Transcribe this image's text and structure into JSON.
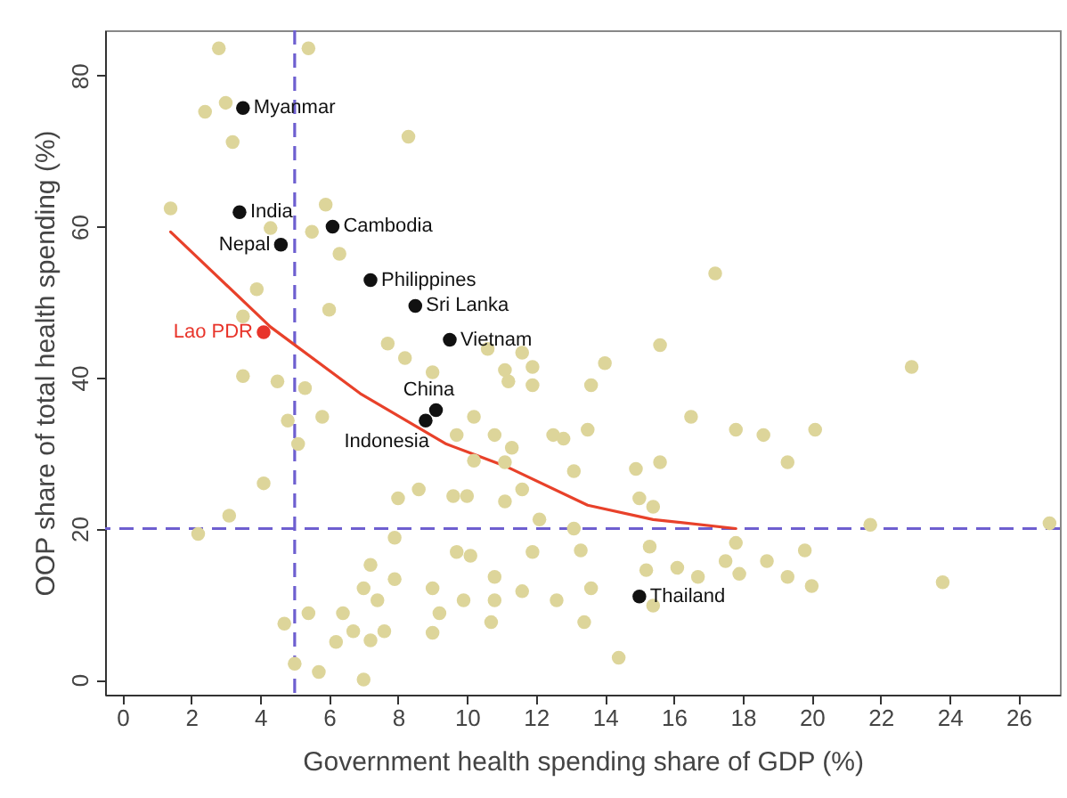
{
  "chart_data": {
    "type": "scatter",
    "xlabel": "Government health spending share of GDP (%)",
    "ylabel": "OOP share of total health spending (%)",
    "xlim": [
      -0.5,
      27.2
    ],
    "ylim": [
      -2,
      86
    ],
    "xticks": [
      0,
      2,
      4,
      6,
      8,
      10,
      12,
      14,
      16,
      18,
      20,
      22,
      24,
      26
    ],
    "yticks": [
      0,
      20,
      40,
      60,
      80
    ],
    "marker": "circle",
    "series": [
      {
        "color": "#ddd59a",
        "x": [
          2.8,
          5.4,
          2.4,
          3.0,
          3.2,
          8.3,
          1.4,
          5.9,
          4.3,
          6.3,
          5.5,
          3.9,
          6.0,
          3.5,
          7.7,
          8.2,
          3.5,
          4.5,
          9.0,
          17.2,
          15.6,
          14.0,
          22.9,
          11.1,
          11.9,
          10.6,
          11.6,
          5.3,
          4.8,
          5.8,
          5.1,
          4.1,
          8.0,
          8.6,
          3.1,
          2.2,
          7.9,
          7.2,
          7.9,
          7.0,
          7.4,
          9.0,
          9.2,
          5.4,
          6.4,
          4.7,
          6.7,
          7.6,
          7.2,
          6.2,
          9.0,
          5.0,
          5.7,
          7.0,
          11.2,
          11.9,
          13.6,
          10.2,
          9.7,
          10.8,
          11.3,
          12.5,
          12.8,
          13.5,
          16.5,
          17.8,
          18.6,
          20.1,
          10.2,
          11.1,
          13.1,
          14.9,
          15.6,
          19.3,
          9.6,
          10.0,
          11.1,
          11.6,
          12.1,
          13.1,
          15.0,
          15.4,
          17.8,
          21.7,
          26.9,
          9.7,
          10.1,
          11.9,
          13.3,
          15.3,
          17.5,
          18.7,
          19.8,
          10.8,
          15.2,
          16.1,
          16.7,
          17.9,
          19.3,
          20.0,
          11.6,
          13.6,
          23.8,
          9.9,
          10.8,
          12.6,
          15.4,
          10.7,
          13.4,
          14.4
        ],
        "values": [
          83.6,
          83.6,
          75.2,
          76.4,
          71.2,
          71.9,
          62.4,
          62.9,
          59.8,
          56.4,
          59.3,
          51.7,
          49.0,
          48.1,
          44.5,
          42.6,
          40.2,
          39.5,
          40.7,
          53.8,
          44.3,
          41.9,
          41.4,
          41.0,
          41.4,
          43.8,
          43.3,
          38.6,
          34.3,
          34.8,
          31.2,
          26.0,
          24.0,
          25.2,
          21.7,
          19.3,
          18.8,
          15.2,
          13.3,
          12.1,
          10.5,
          12.1,
          8.8,
          8.8,
          8.8,
          7.4,
          6.4,
          6.4,
          5.2,
          5.0,
          6.2,
          2.1,
          1.0,
          0,
          39.5,
          39.0,
          39.0,
          34.8,
          32.4,
          32.4,
          30.7,
          32.4,
          31.9,
          33.1,
          34.8,
          33.1,
          32.4,
          33.1,
          29.0,
          28.8,
          27.6,
          27.9,
          28.8,
          28.8,
          24.3,
          24.3,
          23.6,
          25.2,
          21.2,
          20.0,
          24.0,
          22.9,
          18.1,
          20.5,
          20.7,
          16.9,
          16.4,
          16.9,
          17.1,
          17.6,
          15.7,
          15.7,
          17.1,
          13.6,
          14.5,
          14.8,
          13.6,
          14.0,
          13.6,
          12.4,
          11.7,
          12.1,
          12.9,
          10.5,
          10.5,
          10.5,
          9.8,
          7.6,
          7.6,
          2.9
        ]
      },
      {
        "color": "#111111",
        "x": [
          3.5,
          3.4,
          4.6,
          6.1,
          7.2,
          8.5,
          9.5,
          9.1,
          8.8,
          15.0
        ],
        "values": [
          75.7,
          61.9,
          57.6,
          60.0,
          52.9,
          49.5,
          45.0,
          35.7,
          34.3,
          11.0
        ],
        "value_labels": [
          "Myanmar",
          "India",
          "Nepal",
          "Cambodia",
          "Philippines",
          "Sri Lanka",
          "Vietnam",
          "China",
          "Indonesia",
          "Thailand"
        ]
      },
      {
        "color": "#e8342a",
        "x": [
          4.1
        ],
        "values": [
          46.0
        ],
        "value_labels": [
          "Lao PDR"
        ]
      },
      {
        "type": "line",
        "marker": "none",
        "color": "#e8412a",
        "x": [
          1.4,
          4.3,
          6.9,
          9.4,
          11.1,
          13.5,
          15.4,
          17.8
        ],
        "values": [
          59.3,
          46.7,
          37.9,
          31.2,
          28.3,
          23.1,
          21.2,
          20.0
        ]
      }
    ],
    "ref_lines": [
      {
        "axis": "x",
        "value": 5,
        "color": "#6e5fd0",
        "line_style": "dashed"
      },
      {
        "axis": "y",
        "value": 20,
        "color": "#6e5fd0",
        "line_style": "dashed"
      }
    ]
  }
}
